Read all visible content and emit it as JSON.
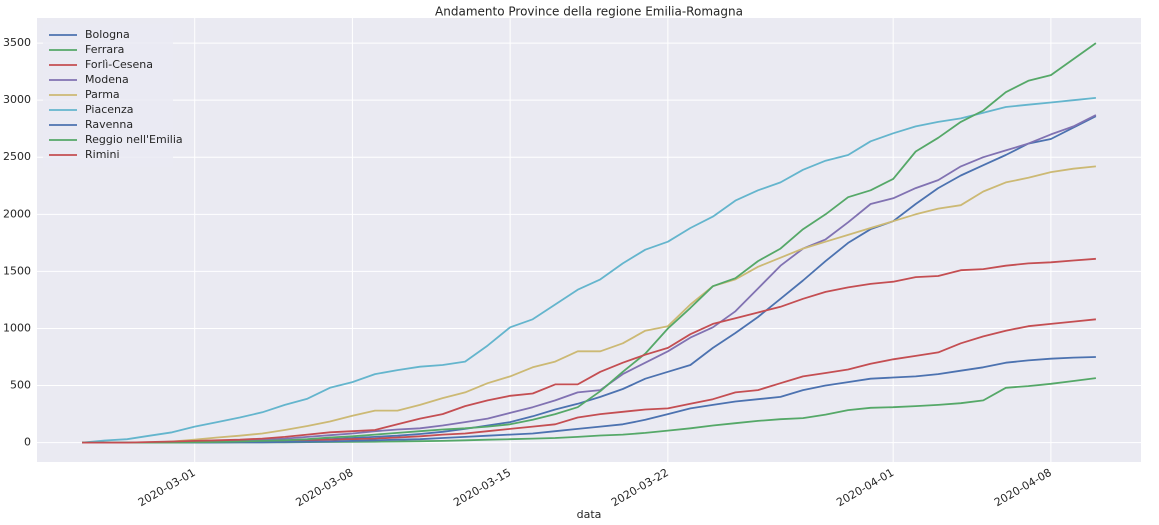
{
  "chart_data": {
    "type": "line",
    "title": "Andamento Province della regione Emilia-Romagna",
    "xlabel": "data",
    "x": [
      "2020-02-25",
      "2020-02-26",
      "2020-02-27",
      "2020-02-28",
      "2020-02-29",
      "2020-03-01",
      "2020-03-02",
      "2020-03-03",
      "2020-03-04",
      "2020-03-05",
      "2020-03-06",
      "2020-03-07",
      "2020-03-08",
      "2020-03-09",
      "2020-03-10",
      "2020-03-11",
      "2020-03-12",
      "2020-03-13",
      "2020-03-14",
      "2020-03-15",
      "2020-03-16",
      "2020-03-17",
      "2020-03-18",
      "2020-03-19",
      "2020-03-20",
      "2020-03-21",
      "2020-03-22",
      "2020-03-23",
      "2020-03-24",
      "2020-03-25",
      "2020-03-26",
      "2020-03-27",
      "2020-03-28",
      "2020-03-29",
      "2020-03-30",
      "2020-03-31",
      "2020-04-01",
      "2020-04-02",
      "2020-04-03",
      "2020-04-04",
      "2020-04-05",
      "2020-04-06",
      "2020-04-07",
      "2020-04-08",
      "2020-04-09",
      "2020-04-10"
    ],
    "series": [
      {
        "name": "Bologna",
        "color": "#4c72b0",
        "values": [
          0,
          0,
          0,
          0,
          0,
          2,
          4,
          6,
          8,
          20,
          25,
          30,
          40,
          50,
          60,
          75,
          95,
          120,
          150,
          180,
          230,
          290,
          340,
          400,
          470,
          560,
          620,
          680,
          830,
          960,
          1100,
          1260,
          1420,
          1590,
          1750,
          1870,
          1940,
          2090,
          2230,
          2340,
          2430,
          2520,
          2620,
          2660,
          2760,
          2860
        ]
      },
      {
        "name": "Ferrara",
        "color": "#55a868",
        "values": [
          0,
          0,
          0,
          0,
          0,
          1,
          1,
          2,
          2,
          3,
          4,
          5,
          6,
          8,
          10,
          12,
          15,
          20,
          25,
          30,
          35,
          40,
          50,
          62,
          70,
          85,
          105,
          125,
          150,
          170,
          190,
          205,
          215,
          245,
          285,
          305,
          310,
          320,
          330,
          345,
          370,
          480,
          495,
          515,
          540,
          565
        ]
      },
      {
        "name": "Forlì-Cesena",
        "color": "#c44e52",
        "values": [
          0,
          0,
          0,
          0,
          0,
          2,
          5,
          8,
          10,
          15,
          20,
          25,
          30,
          35,
          45,
          55,
          70,
          80,
          100,
          120,
          140,
          160,
          220,
          250,
          270,
          290,
          300,
          340,
          380,
          440,
          460,
          520,
          580,
          610,
          640,
          690,
          730,
          760,
          790,
          870,
          930,
          980,
          1020,
          1040,
          1060,
          1080
        ]
      },
      {
        "name": "Modena",
        "color": "#8172b2",
        "values": [
          0,
          0,
          0,
          0,
          0,
          5,
          10,
          15,
          25,
          35,
          50,
          65,
          80,
          100,
          115,
          125,
          150,
          180,
          210,
          260,
          310,
          370,
          440,
          460,
          600,
          700,
          800,
          920,
          1010,
          1150,
          1350,
          1550,
          1700,
          1780,
          1930,
          2090,
          2140,
          2230,
          2300,
          2420,
          2500,
          2560,
          2620,
          2700,
          2770,
          2870
        ]
      },
      {
        "name": "Parma",
        "color": "#ccb974",
        "values": [
          0,
          0,
          0,
          0,
          10,
          25,
          45,
          60,
          80,
          110,
          145,
          185,
          235,
          280,
          280,
          330,
          390,
          440,
          520,
          580,
          660,
          710,
          800,
          800,
          870,
          980,
          1020,
          1210,
          1370,
          1430,
          1540,
          1620,
          1700,
          1760,
          1820,
          1880,
          1940,
          2000,
          2050,
          2080,
          2200,
          2280,
          2320,
          2370,
          2400,
          2420
        ]
      },
      {
        "name": "Piacenza",
        "color": "#64b5cd",
        "values": [
          0,
          18,
          30,
          60,
          90,
          140,
          180,
          220,
          265,
          330,
          385,
          480,
          530,
          600,
          635,
          665,
          680,
          710,
          850,
          1010,
          1080,
          1210,
          1340,
          1430,
          1570,
          1690,
          1760,
          1880,
          1980,
          2120,
          2210,
          2280,
          2390,
          2470,
          2520,
          2640,
          2710,
          2770,
          2810,
          2840,
          2890,
          2940,
          2960,
          2980,
          3000,
          3020
        ]
      },
      {
        "name": "Ravenna",
        "color": "#4c72b0",
        "values": [
          0,
          0,
          0,
          0,
          0,
          0,
          1,
          2,
          3,
          5,
          8,
          10,
          15,
          20,
          25,
          30,
          40,
          50,
          60,
          70,
          80,
          100,
          120,
          140,
          160,
          200,
          250,
          300,
          330,
          360,
          380,
          400,
          460,
          500,
          530,
          560,
          570,
          580,
          600,
          630,
          660,
          700,
          720,
          735,
          745,
          750
        ]
      },
      {
        "name": "Reggio nell'Emilia",
        "color": "#55a868",
        "values": [
          0,
          0,
          0,
          0,
          0,
          2,
          5,
          10,
          15,
          20,
          30,
          45,
          55,
          70,
          85,
          100,
          115,
          125,
          140,
          160,
          200,
          250,
          310,
          450,
          620,
          780,
          1000,
          1180,
          1370,
          1440,
          1590,
          1700,
          1870,
          2000,
          2150,
          2210,
          2310,
          2550,
          2670,
          2810,
          2910,
          3070,
          3170,
          3220,
          3360,
          3500
        ]
      },
      {
        "name": "Rimini",
        "color": "#c44e52",
        "values": [
          0,
          0,
          0,
          5,
          10,
          15,
          20,
          25,
          35,
          50,
          70,
          90,
          100,
          110,
          160,
          210,
          250,
          320,
          370,
          410,
          430,
          510,
          510,
          620,
          700,
          770,
          830,
          950,
          1040,
          1090,
          1140,
          1190,
          1260,
          1320,
          1360,
          1390,
          1410,
          1450,
          1460,
          1510,
          1520,
          1550,
          1570,
          1580,
          1595,
          1610
        ]
      }
    ],
    "xlim": [
      "2020-02-23",
      "2020-04-12"
    ],
    "xticks": [
      "2020-03-01",
      "2020-03-08",
      "2020-03-15",
      "2020-03-22",
      "2020-04-01",
      "2020-04-08"
    ],
    "ylim": [
      -170,
      3720
    ],
    "yticks": [
      0,
      500,
      1000,
      1500,
      2000,
      2500,
      3000,
      3500
    ],
    "grid": true,
    "legend": "upper left"
  }
}
